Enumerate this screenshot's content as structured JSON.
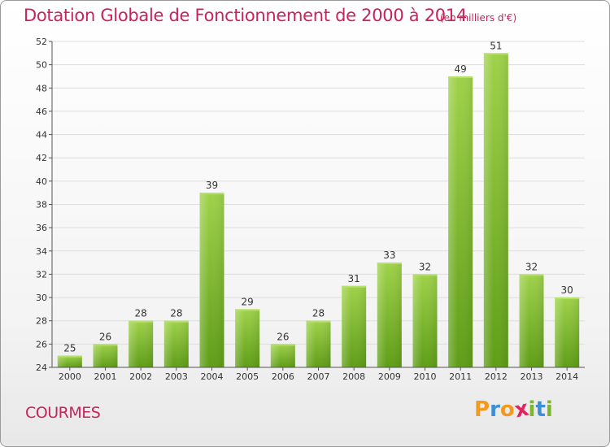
{
  "title": "Dotation Globale de Fonctionnement de 2000 à 2014",
  "unit_note": "(en milliers d'€)",
  "commune": "COURMES",
  "logo": {
    "letters": [
      "P",
      "r",
      "o",
      "x",
      "i",
      "t",
      "i"
    ],
    "colors": [
      "#f39a1e",
      "#3a8fd6",
      "#f39a1e",
      "#e0245e",
      "#7ab829",
      "#3a8fd6",
      "#7ab829"
    ]
  },
  "colors": {
    "bar": "#7cbc2a",
    "bar_light": "#a6d84e",
    "bar_dark": "#5e9a14",
    "text_accent": "#c8235a",
    "grid": "#dddddd",
    "axis": "#555555"
  },
  "chart_data": {
    "type": "bar",
    "title": "Dotation Globale de Fonctionnement de 2000 à 2014",
    "subtitle": "(en milliers d'€)",
    "xlabel": "",
    "ylabel": "",
    "categories": [
      "2000",
      "2001",
      "2002",
      "2003",
      "2004",
      "2005",
      "2006",
      "2007",
      "2008",
      "2009",
      "2010",
      "2011",
      "2012",
      "2013",
      "2014"
    ],
    "values": [
      25,
      26,
      28,
      28,
      39,
      29,
      26,
      28,
      31,
      33,
      32,
      49,
      51,
      32,
      30
    ],
    "ylim": [
      24,
      52
    ],
    "yticks": [
      24,
      26,
      28,
      30,
      32,
      34,
      36,
      38,
      40,
      42,
      44,
      46,
      48,
      50,
      52
    ],
    "grid": true,
    "legend": "none"
  }
}
